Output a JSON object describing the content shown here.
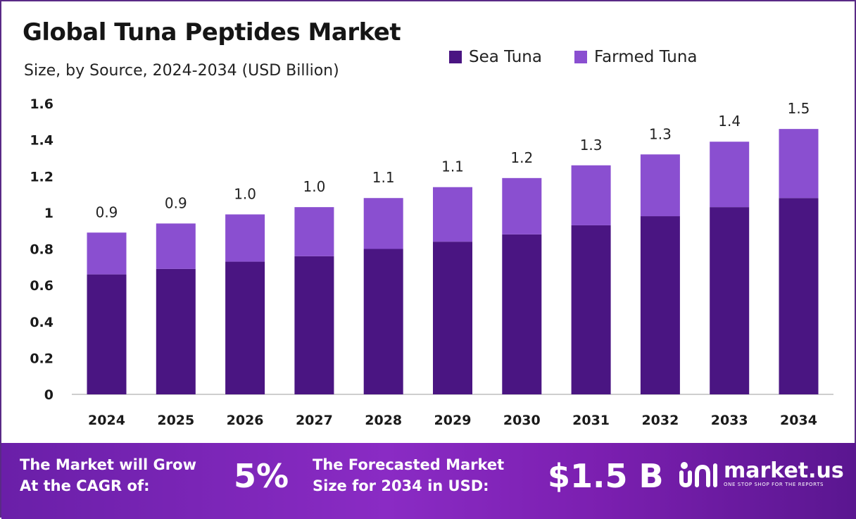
{
  "title": "Global Tuna Peptides Market",
  "subtitle": "Size, by Source, 2024-2034 (USD Billion)",
  "colors": {
    "sea": "#4a1582",
    "farmed": "#8a4fd0",
    "axis": "#bdbdbd"
  },
  "chart_data": {
    "type": "bar",
    "stacked": true,
    "title": "Global Tuna Peptides Market",
    "subtitle": "Size, by Source, 2024-2034 (USD Billion)",
    "categories": [
      "2024",
      "2025",
      "2026",
      "2027",
      "2028",
      "2029",
      "2030",
      "2031",
      "2032",
      "2033",
      "2034"
    ],
    "series": [
      {
        "name": "Sea Tuna",
        "values": [
          0.66,
          0.69,
          0.73,
          0.76,
          0.8,
          0.84,
          0.88,
          0.93,
          0.98,
          1.03,
          1.08
        ]
      },
      {
        "name": "Farmed Tuna",
        "values": [
          0.23,
          0.25,
          0.26,
          0.27,
          0.28,
          0.3,
          0.31,
          0.33,
          0.34,
          0.36,
          0.38
        ]
      }
    ],
    "totals_labels": [
      "0.9",
      "0.9",
      "1.0",
      "1.0",
      "1.1",
      "1.1",
      "1.2",
      "1.3",
      "1.3",
      "1.4",
      "1.5"
    ],
    "ylim": [
      0,
      1.6
    ],
    "yticks": [
      "0",
      "0.2",
      "0.4",
      "0.6",
      "0.8",
      "1",
      "1.2",
      "1.4",
      "1.6"
    ],
    "grid": false,
    "legend": "top-right"
  },
  "footer": {
    "cagr_text_1": "The Market will Grow",
    "cagr_text_2": "At the CAGR of:",
    "cagr_value": "5%",
    "forecast_text_1": "The Forecasted Market",
    "forecast_text_2": "Size for 2034 in USD:",
    "forecast_value": "$1.5 B",
    "brand": "market.us",
    "brand_tagline": "ONE STOP SHOP FOR THE REPORTS"
  }
}
